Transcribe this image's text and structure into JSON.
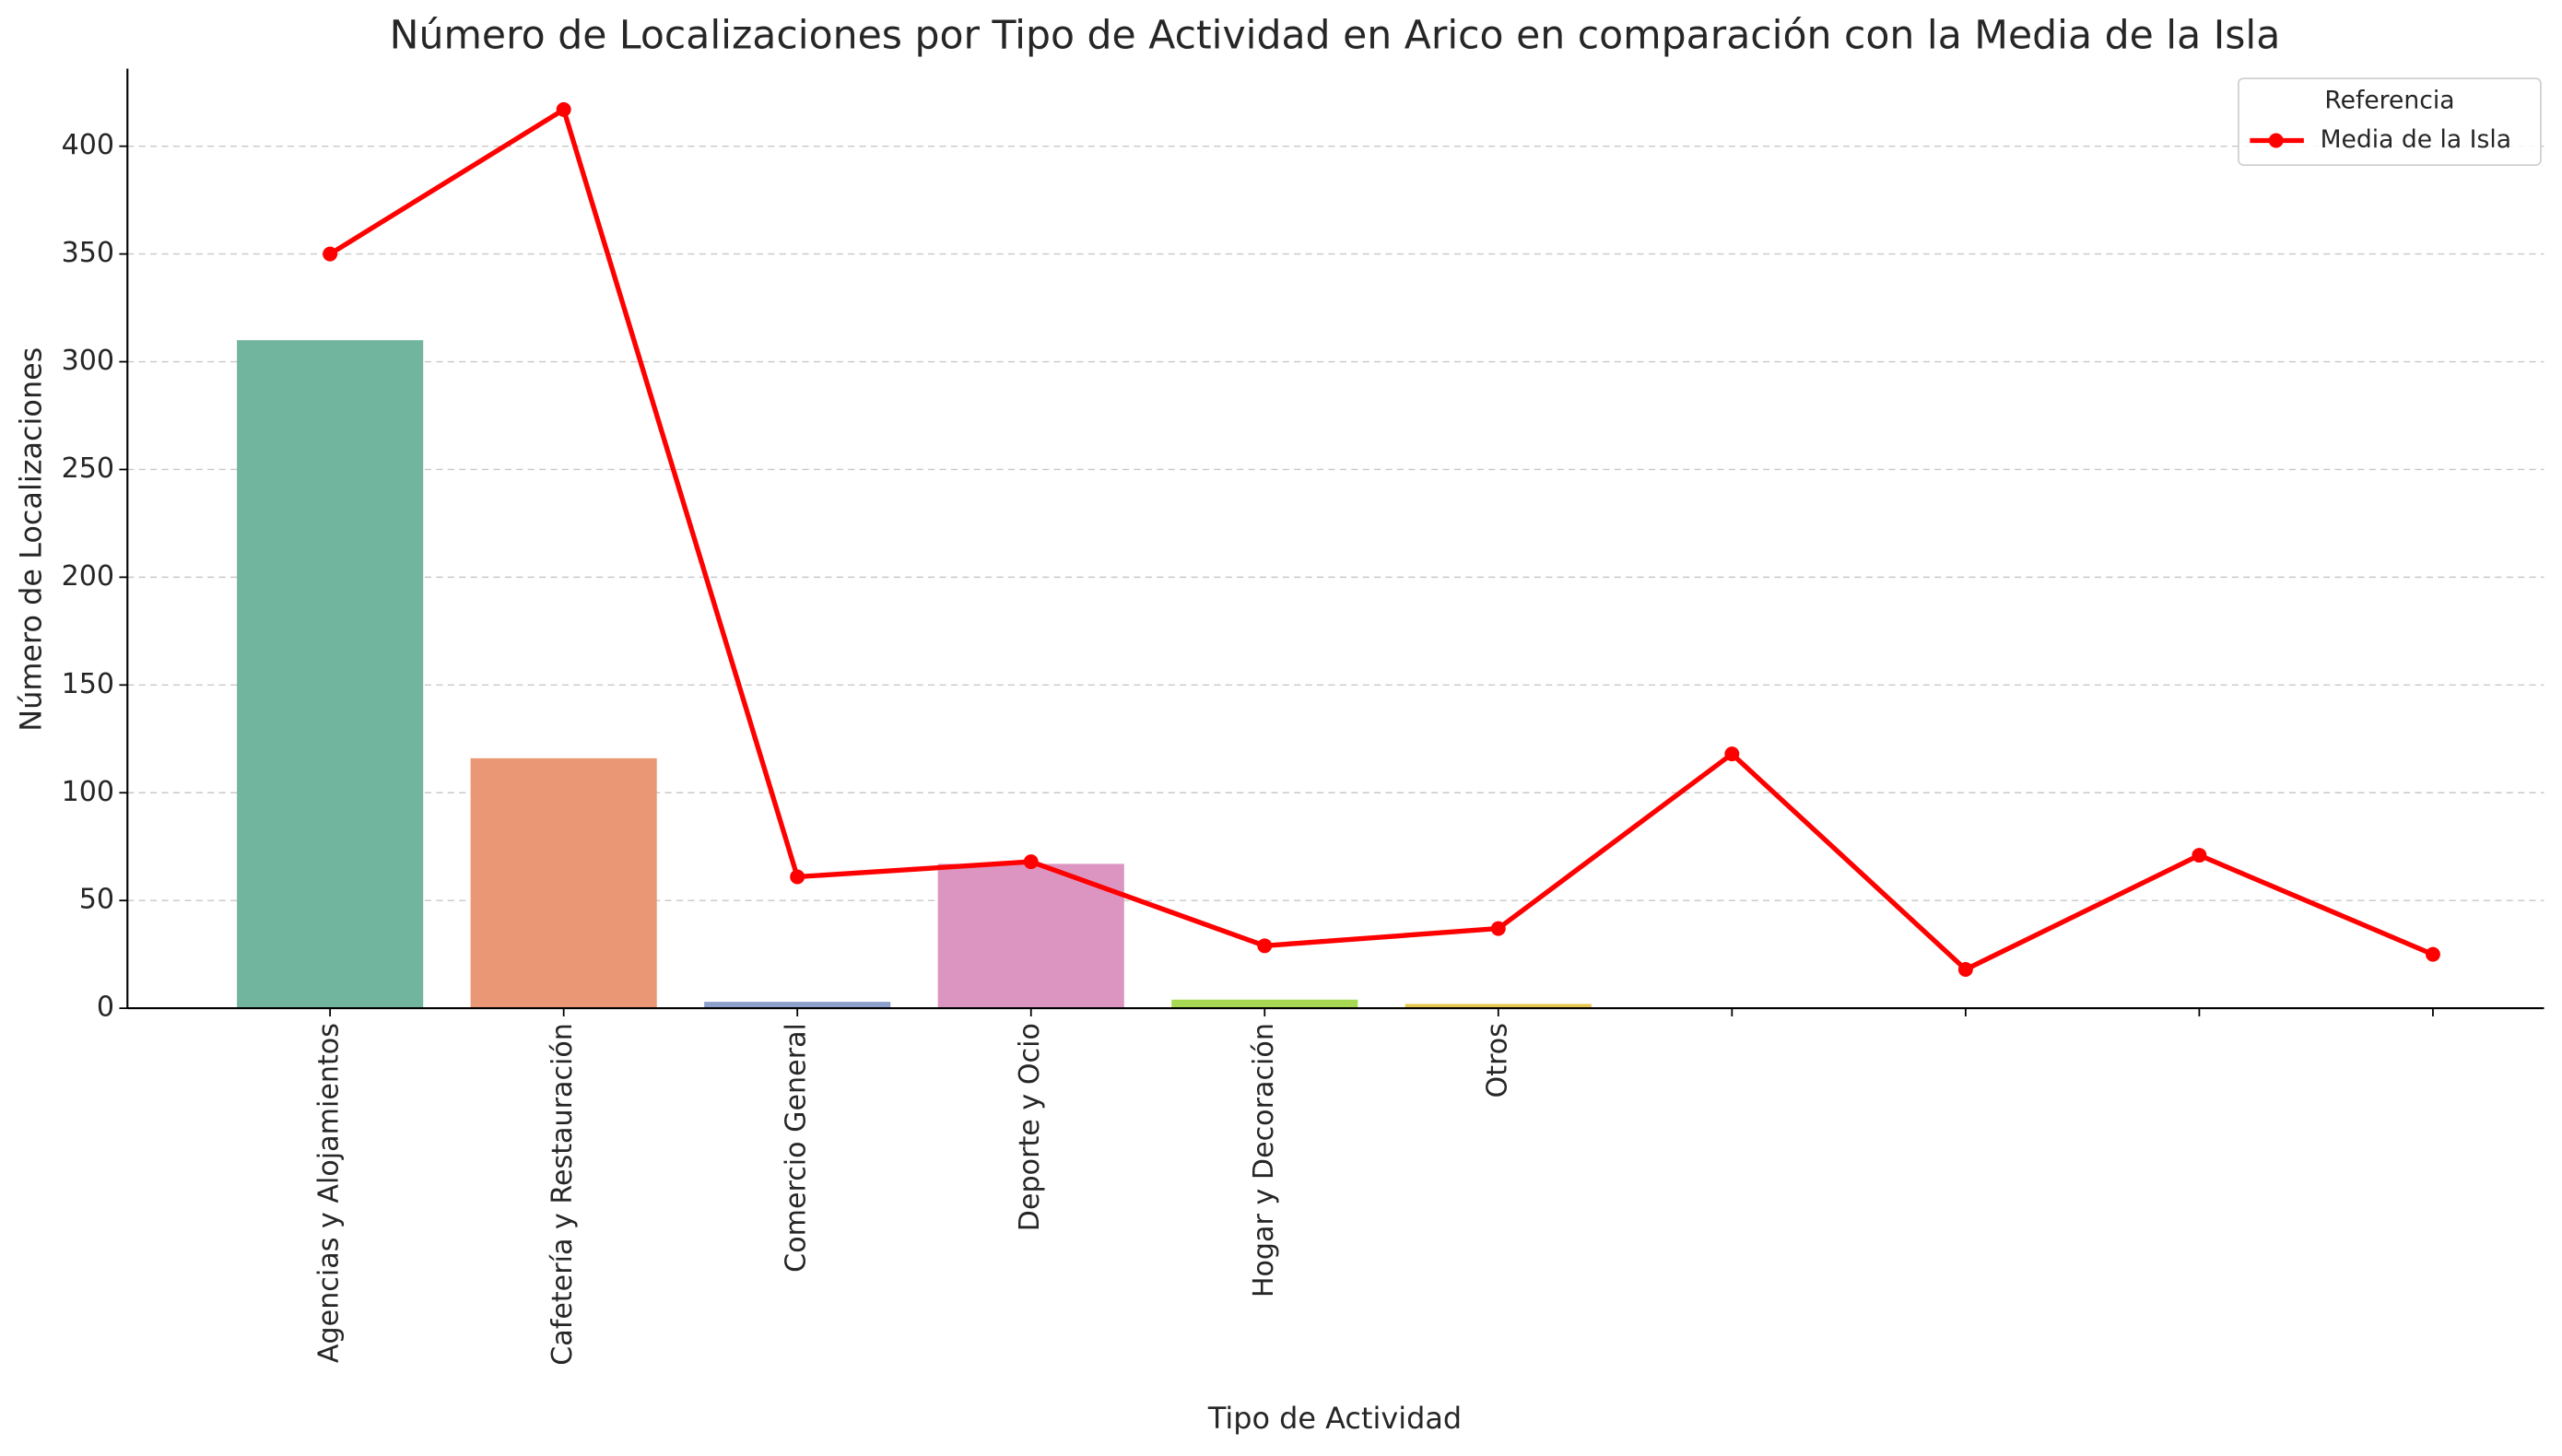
{
  "chart_data": {
    "type": "bar_line",
    "title": "Número de Localizaciones por Tipo de Actividad en Arico en comparación con la Media de la Isla",
    "xlabel": "Tipo de Actividad",
    "ylabel": "Número de Localizaciones",
    "categories": [
      "Agencias y Alojamientos",
      "Cafetería y Restauración",
      "Comercio General",
      "Deporte y Ocio",
      "Hogar y Decoración",
      "Otros",
      null,
      null,
      null,
      null
    ],
    "series": [
      {
        "type": "bar",
        "colors": [
          "#72b59f",
          "#e99775",
          "#8da0cb",
          "#dc95c0",
          "#a6d854",
          "#e6c84f"
        ],
        "values": [
          310,
          116,
          3,
          67,
          4,
          2,
          null,
          null,
          null,
          null
        ]
      },
      {
        "type": "line",
        "name": "Media de la Isla",
        "color": "#ff0000",
        "values": [
          350,
          417,
          61,
          68,
          29,
          37,
          118,
          18,
          71,
          25
        ]
      }
    ],
    "ylim": [
      0,
      436
    ],
    "yticks": [
      0,
      50,
      100,
      150,
      200,
      250,
      300,
      350,
      400
    ],
    "grid": true,
    "legend": {
      "title": "Referencia",
      "corner": "upper right"
    }
  }
}
